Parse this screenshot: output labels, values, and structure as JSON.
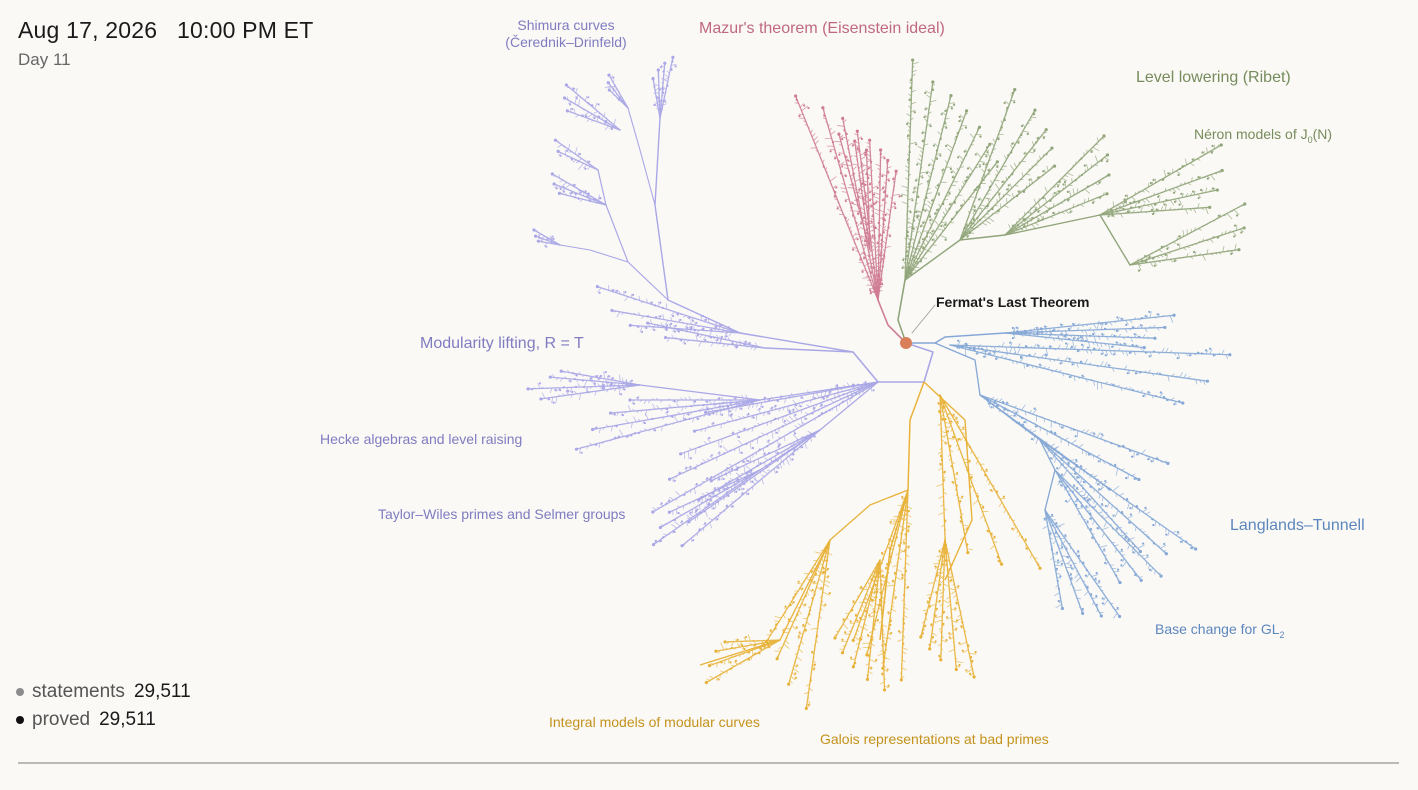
{
  "header": {
    "date": "Aug 17, 2026",
    "time": "10:00 PM ET",
    "day": "Day 11"
  },
  "root": {
    "label": "Fermat's Last Theorem",
    "color": "#d9805a"
  },
  "branches": [
    {
      "id": "modularity",
      "label": "Modularity lifting, R = T",
      "color": "#aaa7e6",
      "label_color": "#7f7cc0"
    },
    {
      "id": "mazur",
      "label": "Mazur's theorem (Eisenstein ideal)",
      "color": "#cf7c94",
      "label_color": "#c06883"
    },
    {
      "id": "ribet",
      "label": "Level lowering (Ribet)",
      "color": "#91a57a",
      "label_color": "#778c5c"
    },
    {
      "id": "langlands",
      "label": "Langlands–Tunnell",
      "color": "#86a8d6",
      "label_color": "#5d86bd"
    },
    {
      "id": "galois",
      "label": "Galois representations at bad primes",
      "color": "#e8b23a",
      "label_color": "#c4921c"
    }
  ],
  "sub_labels": {
    "shimura_line1": "Shimura curves",
    "shimura_line2": "(Čerednik–Drinfeld)",
    "neron_prefix": "Néron models of J",
    "neron_sub": "0",
    "neron_suffix": "(N)",
    "hecke": "Hecke algebras and level raising",
    "taylor_wiles": "Taylor–Wiles primes and Selmer groups",
    "base_change_prefix": "Base change for GL",
    "base_change_sub": "2",
    "integral_models": "Integral models of modular curves"
  },
  "stats": {
    "statements_label": "statements",
    "statements_value": "29,511",
    "statements_color": "#8c8c8c",
    "proved_label": "proved",
    "proved_value": "29,511",
    "proved_color": "#111111"
  }
}
